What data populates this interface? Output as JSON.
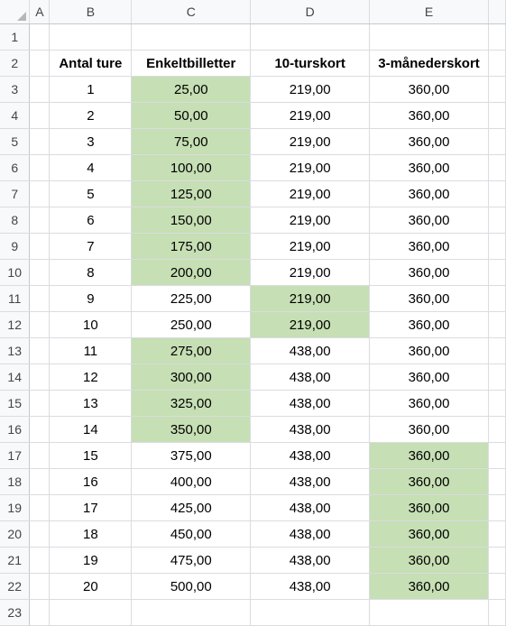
{
  "column_headers": [
    "A",
    "B",
    "C",
    "D",
    "E"
  ],
  "row_numbers": [
    "1",
    "2",
    "3",
    "4",
    "5",
    "6",
    "7",
    "8",
    "9",
    "10",
    "11",
    "12",
    "13",
    "14",
    "15",
    "16",
    "17",
    "18",
    "19",
    "20",
    "21",
    "22",
    "23"
  ],
  "colors": {
    "highlight": "#c6dfb4",
    "header_bg": "#f8f9fa",
    "gridline": "#dadce0"
  },
  "table": {
    "headers": [
      "Antal ture",
      "Enkeltbilletter",
      "10-turskort",
      "3-månederskort"
    ],
    "rows": [
      [
        "1",
        "25,00",
        "219,00",
        "360,00"
      ],
      [
        "2",
        "50,00",
        "219,00",
        "360,00"
      ],
      [
        "3",
        "75,00",
        "219,00",
        "360,00"
      ],
      [
        "4",
        "100,00",
        "219,00",
        "360,00"
      ],
      [
        "5",
        "125,00",
        "219,00",
        "360,00"
      ],
      [
        "6",
        "150,00",
        "219,00",
        "360,00"
      ],
      [
        "7",
        "175,00",
        "219,00",
        "360,00"
      ],
      [
        "8",
        "200,00",
        "219,00",
        "360,00"
      ],
      [
        "9",
        "225,00",
        "219,00",
        "360,00"
      ],
      [
        "10",
        "250,00",
        "219,00",
        "360,00"
      ],
      [
        "11",
        "275,00",
        "438,00",
        "360,00"
      ],
      [
        "12",
        "300,00",
        "438,00",
        "360,00"
      ],
      [
        "13",
        "325,00",
        "438,00",
        "360,00"
      ],
      [
        "14",
        "350,00",
        "438,00",
        "360,00"
      ],
      [
        "15",
        "375,00",
        "438,00",
        "360,00"
      ],
      [
        "16",
        "400,00",
        "438,00",
        "360,00"
      ],
      [
        "17",
        "425,00",
        "438,00",
        "360,00"
      ],
      [
        "18",
        "450,00",
        "438,00",
        "360,00"
      ],
      [
        "19",
        "475,00",
        "438,00",
        "360,00"
      ],
      [
        "20",
        "500,00",
        "438,00",
        "360,00"
      ]
    ],
    "highlighted_column_per_row": [
      1,
      1,
      1,
      1,
      1,
      1,
      1,
      1,
      2,
      2,
      1,
      1,
      1,
      1,
      3,
      3,
      3,
      3,
      3,
      3
    ]
  }
}
